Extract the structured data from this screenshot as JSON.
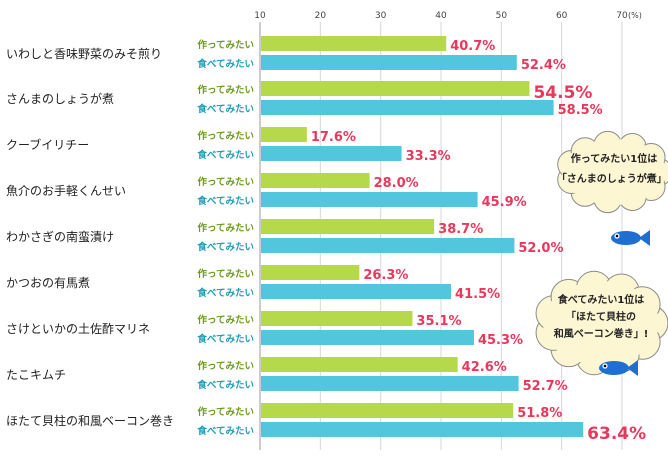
{
  "chart_data": {
    "type": "bar",
    "orientation": "horizontal",
    "xlim": [
      10,
      70
    ],
    "x_ticks": [
      "10",
      "20",
      "30",
      "40",
      "50",
      "60",
      "70"
    ],
    "unit": "(%)",
    "grid": true,
    "categories": [
      "いわしと香味野菜のみそ煎り",
      "さんまのしょうが煮",
      "クーブイリチー",
      "魚介のお手軽くんせい",
      "わかさぎの南蛮漬け",
      "かつおの有馬煮",
      "さけといかの土佐酢マリネ",
      "たこキムチ",
      "ほたて貝柱の和風ベーコン巻き"
    ],
    "series": [
      {
        "name": "作ってみたい",
        "color": "#b6d94c",
        "label_color": "#6a9a1f",
        "values": [
          40.7,
          54.5,
          17.6,
          28.0,
          38.7,
          26.3,
          35.1,
          42.6,
          51.8
        ],
        "labels": [
          "40.7%",
          "54.5%",
          "17.6%",
          "28.0%",
          "38.7%",
          "26.3%",
          "35.1%",
          "42.6%",
          "51.8%"
        ]
      },
      {
        "name": "食べてみたい",
        "color": "#52c6dd",
        "label_color": "#1e9cb6",
        "values": [
          52.4,
          58.5,
          33.3,
          45.9,
          52.0,
          41.5,
          45.3,
          52.7,
          63.4
        ],
        "labels": [
          "52.4%",
          "58.5%",
          "33.3%",
          "45.9%",
          "52.0%",
          "41.5%",
          "45.3%",
          "52.7%",
          "63.4%"
        ]
      }
    ],
    "value_label_color": "#e8385c",
    "highlight": [
      {
        "series": 0,
        "index": 1
      },
      {
        "series": 1,
        "index": 8
      }
    ],
    "annotations": [
      {
        "lines": [
          "作ってみたい1位は",
          "「さんまのしょうが煮」!"
        ]
      },
      {
        "lines": [
          "食べてみたい1位は",
          "「ほたて貝柱の",
          "和風ベーコン巻き」!"
        ]
      }
    ]
  }
}
